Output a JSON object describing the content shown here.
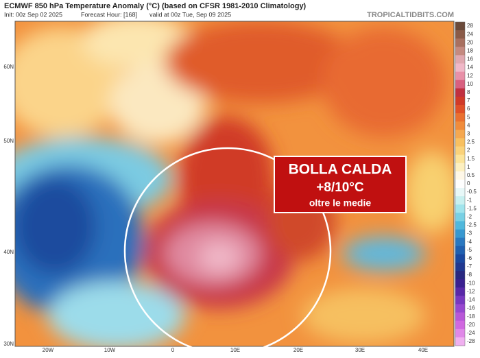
{
  "header": {
    "title": "ECMWF 850 hPa Temperature Anomaly (°C) (based on CFSR 1981-2010 Climatology)",
    "init": "Init: 00z Sep 02 2025",
    "forecast_hour": "Forecast Hour: [168]",
    "valid": "valid at 00z Tue, Sep 09 2025",
    "source": "TROPICALTIDBITS.COM"
  },
  "map": {
    "lat_labels": [
      "60N",
      "50N",
      "40N",
      "30N"
    ],
    "lon_labels": [
      "20W",
      "10W",
      "0",
      "10E",
      "20E",
      "30E",
      "40E"
    ]
  },
  "annotation": {
    "title": "BOLLA CALDA",
    "value": "+8/10°C",
    "note": "oltre le medie"
  },
  "colorbar": {
    "ticks": [
      28,
      24,
      20,
      18,
      16,
      14,
      12,
      10,
      8,
      7,
      6,
      5,
      4,
      3,
      2.5,
      2,
      1.5,
      1,
      0.5,
      0,
      -0.5,
      -1,
      -1.5,
      -2,
      -2.5,
      -3,
      -4,
      -5,
      -6,
      -7,
      -8,
      -10,
      -12,
      -14,
      -16,
      -18,
      -20,
      -24,
      -28
    ],
    "colors": [
      "#6b4a3a",
      "#8a5a48",
      "#a87060",
      "#c48a80",
      "#e0a8b0",
      "#f0b8c8",
      "#e890a8",
      "#d86080",
      "#c03040",
      "#d03a28",
      "#e05028",
      "#ea7030",
      "#f08c3c",
      "#f5a850",
      "#f8c060",
      "#fad27a",
      "#fce49a",
      "#fdf0c0",
      "#fff8e8",
      "#ffffff",
      "#e8f8f8",
      "#c8f0f0",
      "#a0e4ec",
      "#78d0e4",
      "#50b8dc",
      "#3898d0",
      "#2a78c0",
      "#2060b0",
      "#1a48a0",
      "#203890",
      "#282880",
      "#3a2090",
      "#5828a8",
      "#7838c0",
      "#9848d0",
      "#b858d8",
      "#d068e0",
      "#e088e8",
      "#f0b0f0"
    ]
  }
}
